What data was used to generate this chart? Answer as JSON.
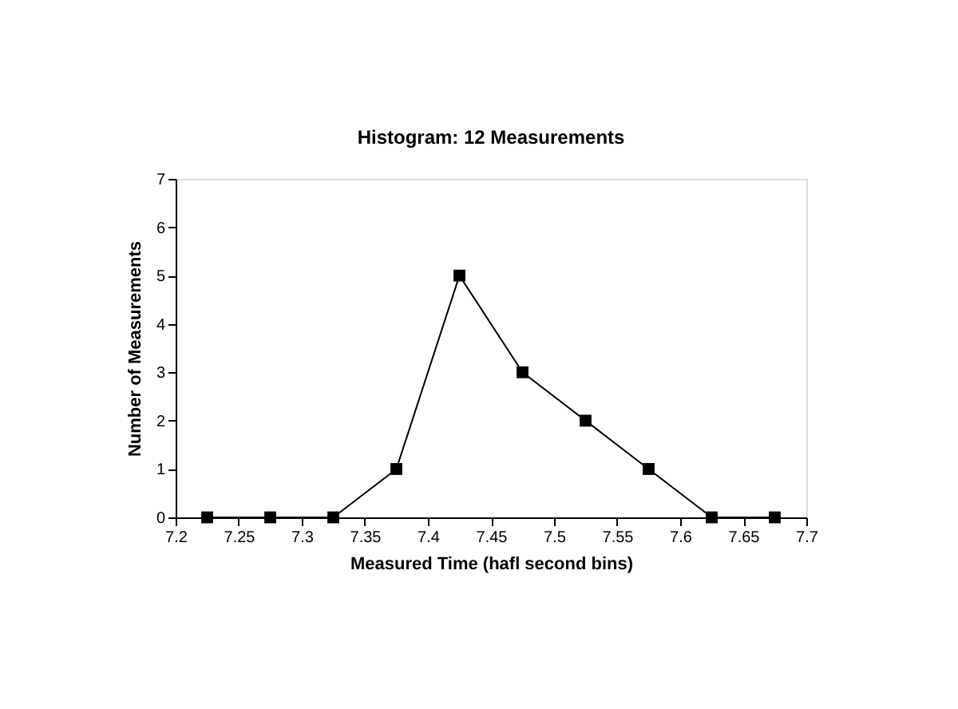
{
  "chart_data": {
    "type": "line",
    "title": "Histogram: 12 Measurements",
    "xlabel": "Measured Time (hafl second bins)",
    "ylabel": "Number of Measurements",
    "x": [
      7.225,
      7.275,
      7.325,
      7.375,
      7.425,
      7.475,
      7.525,
      7.575,
      7.625,
      7.675
    ],
    "series": [
      {
        "color": "#000000",
        "values": [
          0,
          0,
          0,
          1,
          5,
          3,
          2,
          1,
          0,
          0
        ]
      }
    ],
    "xlim": [
      7.2,
      7.7
    ],
    "xticks": [
      7.2,
      7.25,
      7.3,
      7.35,
      7.4,
      7.45,
      7.5,
      7.55,
      7.6,
      7.65,
      7.7
    ],
    "ylim": [
      0,
      7
    ],
    "yticks": [
      0,
      1,
      2,
      3,
      4,
      5,
      6,
      7
    ],
    "grid": false,
    "legend": false,
    "marker": "square",
    "line_style": "solid"
  }
}
